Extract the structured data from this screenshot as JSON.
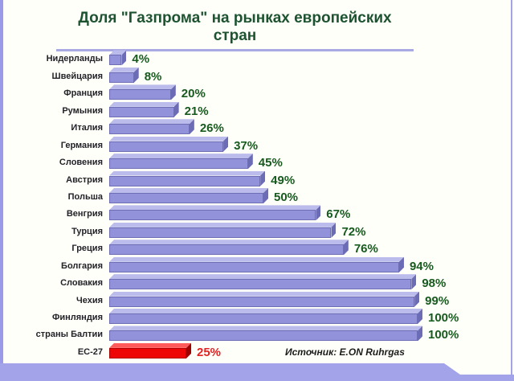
{
  "page": {
    "title": "Доля \"Газпрома\" на рынках европейских стран",
    "source_note": "Источник: E.ON Ruhrgas"
  },
  "colors": {
    "purple_bar": {
      "front": "#9292da",
      "top": "#bcbcec",
      "side": "#6c6cb6",
      "edge": "#6e6eb4"
    },
    "red_bar": {
      "front": "#ee0505",
      "top": "#ff5a5a",
      "side": "#9e0000",
      "edge": "#b00000"
    },
    "value_green": "#175a1e",
    "value_red": "#e32222",
    "title_green": "#1d5330",
    "accent_lavender": "#a3a3ea",
    "label_dark": "#222228"
  },
  "chart_data": {
    "type": "bar",
    "orientation": "horizontal",
    "title": "Доля \"Газпрома\" на рынках европейских стран",
    "source": "Источник: E.ON Ruhrgas",
    "value_unit": "%",
    "xlim": [
      0,
      100
    ],
    "grid": false,
    "legend": false,
    "rows": [
      {
        "label": "Нидерланды",
        "value": 4,
        "display": "4%",
        "color": "purple"
      },
      {
        "label": "Швейцария",
        "value": 8,
        "display": "8%",
        "color": "purple"
      },
      {
        "label": "Франция",
        "value": 20,
        "display": "20%",
        "color": "purple"
      },
      {
        "label": "Румыния",
        "value": 21,
        "display": "21%",
        "color": "purple"
      },
      {
        "label": "Италия",
        "value": 26,
        "display": "26%",
        "color": "purple"
      },
      {
        "label": "Германия",
        "value": 37,
        "display": "37%",
        "color": "purple"
      },
      {
        "label": "Словения",
        "value": 45,
        "display": "45%",
        "color": "purple"
      },
      {
        "label": "Австрия",
        "value": 49,
        "display": "49%",
        "color": "purple"
      },
      {
        "label": "Польша",
        "value": 50,
        "display": "50%",
        "color": "purple"
      },
      {
        "label": "Венгрия",
        "value": 67,
        "display": "67%",
        "color": "purple"
      },
      {
        "label": "Турция",
        "value": 72,
        "display": "72%",
        "color": "purple"
      },
      {
        "label": "Греция",
        "value": 76,
        "display": "76%",
        "color": "purple"
      },
      {
        "label": "Болгария",
        "value": 94,
        "display": "94%",
        "color": "purple"
      },
      {
        "label": "Словакия",
        "value": 98,
        "display": "98%",
        "color": "purple"
      },
      {
        "label": "Чехия",
        "value": 99,
        "display": "99%",
        "color": "purple"
      },
      {
        "label": "Финляндия",
        "value": 100,
        "display": "100%",
        "color": "purple"
      },
      {
        "label": "страны Балтии",
        "value": 100,
        "display": "100%",
        "color": "purple"
      },
      {
        "label": "ЕС-27",
        "value": 25,
        "display": "25%",
        "color": "red"
      }
    ]
  }
}
